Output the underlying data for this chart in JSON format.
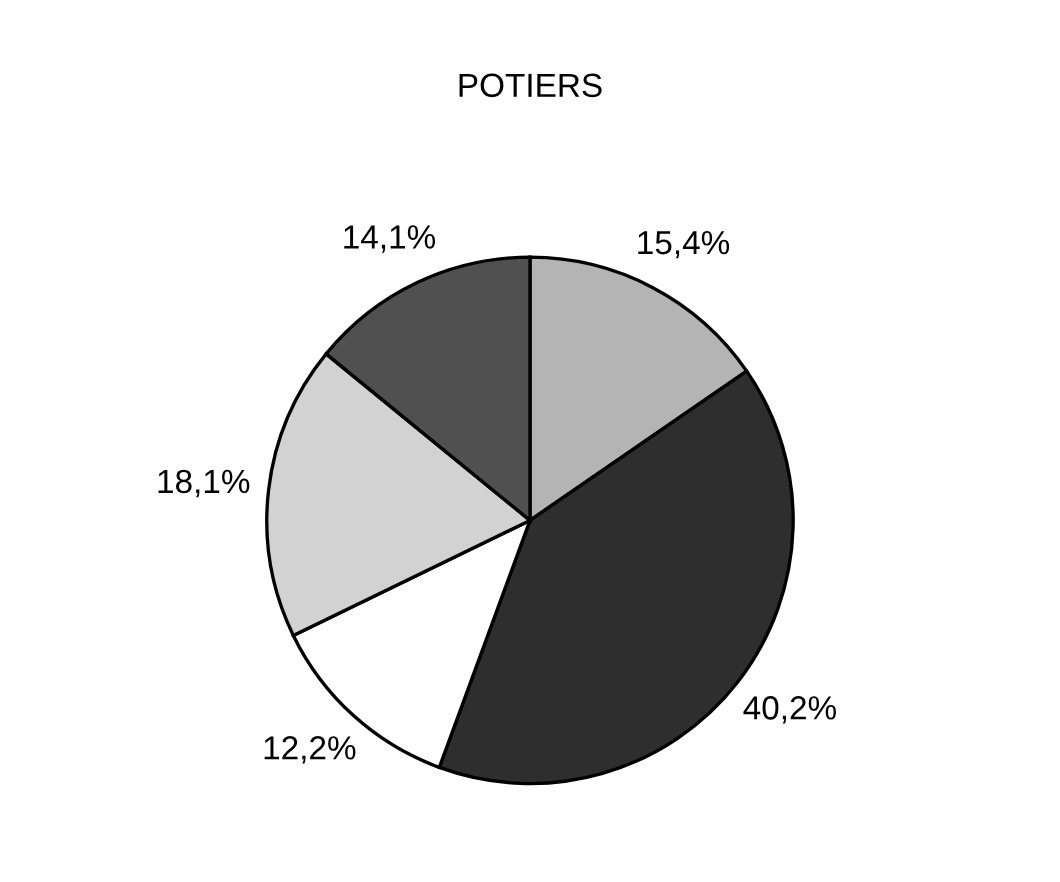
{
  "chart_data": {
    "type": "pie",
    "title": "POTIERS",
    "categories": [
      null,
      null,
      null,
      null,
      null
    ],
    "values": [
      15.4,
      40.2,
      12.2,
      18.1,
      14.1
    ],
    "value_labels": [
      "15,4%",
      "40,2%",
      "12,2%",
      "18,1%",
      "14,1%"
    ],
    "colors": [
      "#b4b4b4",
      "#2e2e2e",
      "#ffffff",
      "#d2d2d2",
      "#505050"
    ]
  }
}
